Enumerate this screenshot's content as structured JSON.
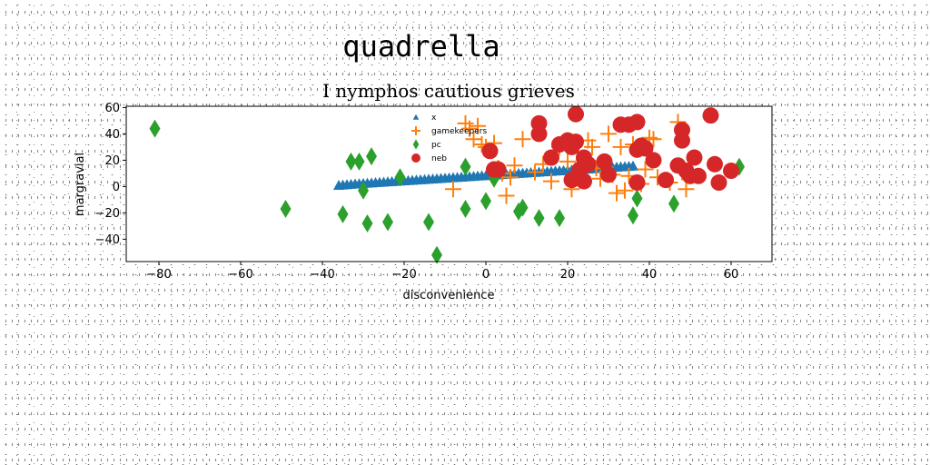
{
  "chart_data": {
    "type": "scatter",
    "suptitle": "quadrella",
    "title": "I nymphos cautious grieves",
    "xlabel": "disconvenience",
    "ylabel": "margravial",
    "xlim": [
      -88,
      70
    ],
    "ylim": [
      -57,
      61
    ],
    "xticks": [
      -80,
      -60,
      -40,
      -20,
      0,
      20,
      40,
      60
    ],
    "yticks": [
      -40,
      -20,
      0,
      20,
      40,
      60
    ],
    "xtick_labels": [
      "−80",
      "−60",
      "−40",
      "−20",
      "0",
      "20",
      "40",
      "60"
    ],
    "ytick_labels": [
      "−40",
      "−20",
      "0",
      "20",
      "40",
      "60"
    ],
    "grid": false,
    "legend_position": "top-center",
    "series": [
      {
        "name": "x",
        "marker": "triangle",
        "color": "#1f77b4",
        "points": [
          [
            -36,
            1
          ],
          [
            -35,
            1.2
          ],
          [
            -34,
            1.5
          ],
          [
            -33,
            1.7
          ],
          [
            -32,
            2
          ],
          [
            -31,
            2.2
          ],
          [
            -30,
            2.4
          ],
          [
            -29,
            2.6
          ],
          [
            -28,
            2.8
          ],
          [
            -27,
            3
          ],
          [
            -26,
            3.2
          ],
          [
            -25,
            3.4
          ],
          [
            -24,
            3.6
          ],
          [
            -23,
            3.8
          ],
          [
            -22,
            4
          ],
          [
            -21,
            4.2
          ],
          [
            -20,
            4.4
          ],
          [
            -19,
            4.6
          ],
          [
            -18,
            4.8
          ],
          [
            -17,
            5
          ],
          [
            -16,
            5.2
          ],
          [
            -15,
            5.4
          ],
          [
            -14,
            5.6
          ],
          [
            -13,
            5.8
          ],
          [
            -12,
            6
          ],
          [
            -11,
            6.2
          ],
          [
            -10,
            6.4
          ],
          [
            -9,
            6.6
          ],
          [
            -8,
            6.8
          ],
          [
            -7,
            7
          ],
          [
            -6,
            7.2
          ],
          [
            -5,
            7.4
          ],
          [
            -4,
            7.6
          ],
          [
            -3,
            7.8
          ],
          [
            -2,
            8
          ],
          [
            -1,
            8.2
          ],
          [
            0,
            8.4
          ],
          [
            1,
            8.6
          ],
          [
            2,
            8.8
          ],
          [
            3,
            9
          ],
          [
            4,
            9.2
          ],
          [
            5,
            9.4
          ],
          [
            6,
            9.6
          ],
          [
            7,
            9.8
          ],
          [
            8,
            10
          ],
          [
            9,
            10.2
          ],
          [
            10,
            10.4
          ],
          [
            11,
            10.6
          ],
          [
            12,
            10.8
          ],
          [
            13,
            11
          ],
          [
            14,
            11.2
          ],
          [
            15,
            11.4
          ],
          [
            16,
            11.6
          ],
          [
            17,
            11.8
          ],
          [
            18,
            12
          ],
          [
            19,
            12.2
          ],
          [
            20,
            12.4
          ],
          [
            21,
            12.6
          ],
          [
            22,
            12.8
          ],
          [
            23,
            13
          ],
          [
            24,
            13.2
          ],
          [
            25,
            13.4
          ],
          [
            26,
            13.6
          ],
          [
            27,
            13.8
          ],
          [
            28,
            14
          ],
          [
            29,
            14.2
          ],
          [
            30,
            14.4
          ],
          [
            31,
            14.6
          ],
          [
            32,
            14.8
          ],
          [
            33,
            15
          ],
          [
            34,
            15.2
          ],
          [
            35,
            15.4
          ],
          [
            36,
            15.6
          ]
        ]
      },
      {
        "name": "gamekeepers",
        "marker": "plus",
        "color": "#ff7f0e",
        "points": [
          [
            -8,
            -2
          ],
          [
            -5,
            48
          ],
          [
            -4,
            44
          ],
          [
            -3,
            36
          ],
          [
            -2,
            46
          ],
          [
            -1,
            32
          ],
          [
            0,
            30
          ],
          [
            2,
            33
          ],
          [
            3,
            14
          ],
          [
            4,
            10
          ],
          [
            5,
            -7
          ],
          [
            6,
            7
          ],
          [
            7,
            16
          ],
          [
            9,
            36
          ],
          [
            12,
            11
          ],
          [
            14,
            17
          ],
          [
            16,
            4
          ],
          [
            18,
            30
          ],
          [
            20,
            19
          ],
          [
            21,
            -2
          ],
          [
            22,
            6
          ],
          [
            24,
            20
          ],
          [
            25,
            35
          ],
          [
            26,
            30
          ],
          [
            27,
            14
          ],
          [
            28,
            6
          ],
          [
            29,
            18
          ],
          [
            30,
            40
          ],
          [
            31,
            9
          ],
          [
            32,
            -5
          ],
          [
            33,
            30
          ],
          [
            34,
            -3
          ],
          [
            35,
            8
          ],
          [
            36,
            32
          ],
          [
            38,
            2
          ],
          [
            39,
            13
          ],
          [
            40,
            37
          ],
          [
            41,
            36
          ],
          [
            42,
            7
          ],
          [
            45,
            3
          ],
          [
            47,
            49
          ],
          [
            48,
            11
          ],
          [
            49,
            -2
          ],
          [
            50,
            8
          ]
        ]
      },
      {
        "name": "pc",
        "marker": "diamond",
        "color": "#2ca02c",
        "points": [
          [
            -81,
            44
          ],
          [
            -49,
            -17
          ],
          [
            -35,
            -21
          ],
          [
            -33,
            19
          ],
          [
            -31,
            19
          ],
          [
            -30,
            -3
          ],
          [
            -29,
            -28
          ],
          [
            -28,
            23
          ],
          [
            -24,
            -27
          ],
          [
            -21,
            7
          ],
          [
            -14,
            -27
          ],
          [
            -12,
            -52
          ],
          [
            -5,
            15
          ],
          [
            -5,
            -17
          ],
          [
            0,
            -11
          ],
          [
            2,
            6
          ],
          [
            8,
            -19
          ],
          [
            9,
            -16
          ],
          [
            13,
            -24
          ],
          [
            18,
            -24
          ],
          [
            36,
            -22
          ],
          [
            37,
            -9
          ],
          [
            46,
            -13
          ],
          [
            62,
            15
          ]
        ]
      },
      {
        "name": "neb",
        "marker": "circle",
        "color": "#d62728",
        "points": [
          [
            1,
            27
          ],
          [
            2,
            13
          ],
          [
            3,
            13
          ],
          [
            13,
            48
          ],
          [
            13,
            40
          ],
          [
            16,
            22
          ],
          [
            18,
            32
          ],
          [
            20,
            35
          ],
          [
            21,
            5
          ],
          [
            21,
            30
          ],
          [
            22,
            55
          ],
          [
            22,
            34
          ],
          [
            23,
            13
          ],
          [
            24,
            22
          ],
          [
            24,
            4
          ],
          [
            25,
            17
          ],
          [
            29,
            19
          ],
          [
            30,
            9
          ],
          [
            33,
            47
          ],
          [
            35,
            47
          ],
          [
            37,
            49
          ],
          [
            37,
            28
          ],
          [
            37,
            3
          ],
          [
            38,
            31
          ],
          [
            39,
            29
          ],
          [
            41,
            20
          ],
          [
            44,
            5
          ],
          [
            47,
            16
          ],
          [
            48,
            43
          ],
          [
            48,
            35
          ],
          [
            49,
            12
          ],
          [
            50,
            8
          ],
          [
            51,
            22
          ],
          [
            52,
            8
          ],
          [
            55,
            54
          ],
          [
            56,
            17
          ],
          [
            57,
            3
          ],
          [
            60,
            12
          ]
        ]
      }
    ]
  }
}
